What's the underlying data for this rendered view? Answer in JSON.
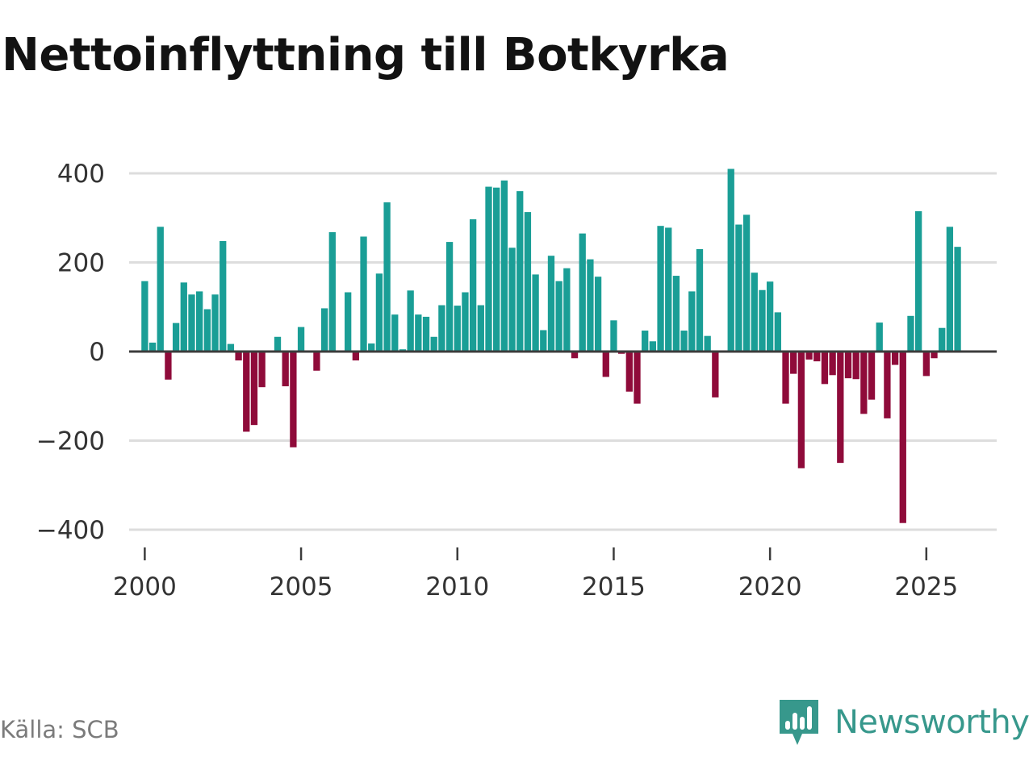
{
  "header": {
    "title": "Nettoinflyttning till Botkyrka"
  },
  "footer": {
    "source": "Källa: SCB",
    "brand": "Newsworthy"
  },
  "colors": {
    "positive": "#1a9e96",
    "negative": "#8f0b3a",
    "axis": "#3c3c3c",
    "grid": "#dddddd",
    "brand": "#37988c"
  },
  "chart_data": {
    "type": "bar",
    "title": "Nettoinflyttning till Botkyrka",
    "xlabel": "",
    "ylabel": "",
    "frequency": "quarterly",
    "x_start": 2000.0,
    "x_step": 0.25,
    "xlim": [
      1999.5,
      2027.25
    ],
    "xticks": [
      2000,
      2005,
      2010,
      2015,
      2020,
      2025
    ],
    "ylim": [
      -400,
      400
    ],
    "yticks": [
      400,
      200,
      0,
      -200,
      -400
    ],
    "ytick_labels": [
      "400",
      "200",
      "0",
      "−200",
      "−400"
    ],
    "grid": true,
    "values": [
      158,
      20,
      280,
      -63,
      64,
      155,
      128,
      135,
      95,
      128,
      248,
      17,
      -20,
      -180,
      -165,
      -80,
      0,
      33,
      -78,
      -215,
      55,
      0,
      -43,
      97,
      268,
      0,
      133,
      -20,
      258,
      18,
      175,
      335,
      83,
      5,
      137,
      83,
      78,
      33,
      104,
      246,
      103,
      133,
      297,
      104,
      370,
      368,
      384,
      233,
      360,
      313,
      173,
      48,
      215,
      158,
      187,
      -15,
      265,
      207,
      168,
      -57,
      70,
      -5,
      -90,
      -117,
      47,
      23,
      282,
      278,
      170,
      47,
      135,
      230,
      35,
      -103,
      0,
      410,
      285,
      307,
      177,
      138,
      157,
      88,
      -117,
      -50,
      -262,
      -18,
      -22,
      -73,
      -53,
      -250,
      -60,
      -62,
      -140,
      -108,
      65,
      -150,
      -30,
      -385,
      80,
      315,
      -55,
      -15,
      53,
      280,
      235
    ]
  }
}
